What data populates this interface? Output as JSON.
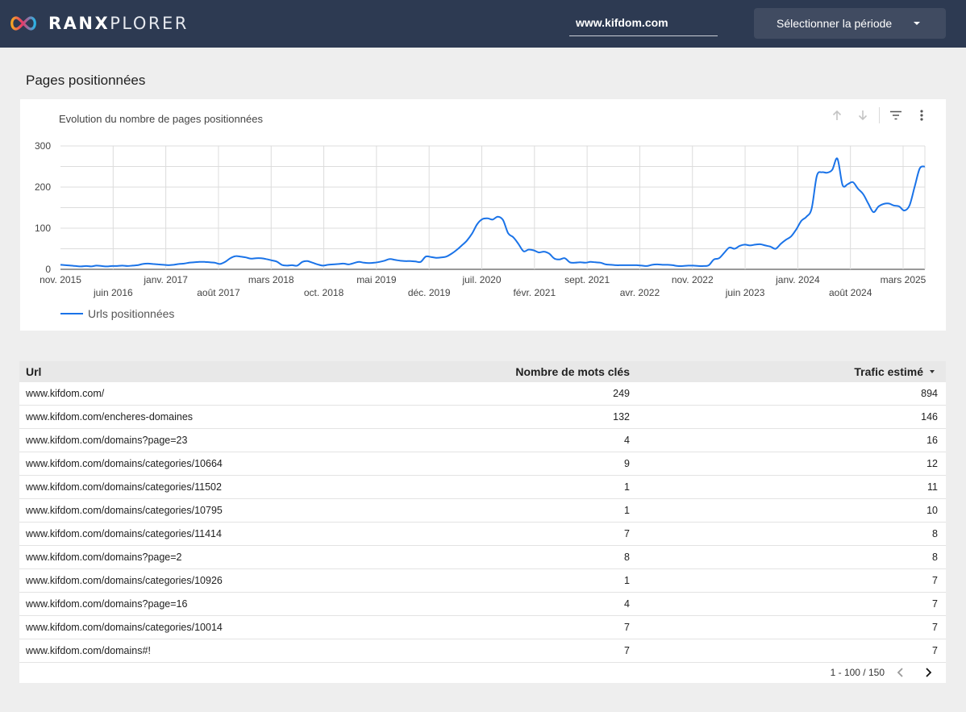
{
  "header": {
    "logo_text_bold": "RANX",
    "logo_text_light": "PLORER",
    "domain_value": "www.kifdom.com",
    "period_label": "Sélectionner la période"
  },
  "section": {
    "title": "Pages positionnées"
  },
  "chart_data": {
    "type": "line",
    "title": "Evolution du nombre de pages positionnées",
    "xlabel": "",
    "ylabel": "",
    "ylim": [
      0,
      300
    ],
    "yticks": [
      0,
      100,
      200,
      300
    ],
    "grid": true,
    "legend_position": "bottom-left",
    "x_tick_labels": [
      "nov. 2015",
      "juin 2016",
      "janv. 2017",
      "août 2017",
      "mars 2018",
      "oct. 2018",
      "mai 2019",
      "déc. 2019",
      "juil. 2020",
      "févr. 2021",
      "sept. 2021",
      "avr. 2022",
      "nov. 2022",
      "juin 2023",
      "janv. 2024",
      "août 2024",
      "mars 2025"
    ],
    "series": [
      {
        "name": "Urls positionnées",
        "color": "#1a73e8",
        "values": [
          11,
          10,
          9,
          8,
          7,
          8,
          7,
          9,
          8,
          7,
          8,
          8,
          9,
          8,
          9,
          10,
          13,
          14,
          13,
          12,
          11,
          10,
          11,
          13,
          14,
          16,
          17,
          18,
          18,
          17,
          16,
          13,
          18,
          27,
          32,
          31,
          29,
          26,
          27,
          27,
          25,
          22,
          19,
          11,
          9,
          10,
          9,
          18,
          20,
          16,
          12,
          9,
          11,
          12,
          13,
          14,
          12,
          15,
          18,
          16,
          15,
          16,
          18,
          21,
          25,
          23,
          21,
          20,
          20,
          19,
          18,
          31,
          30,
          28,
          29,
          31,
          38,
          47,
          58,
          70,
          87,
          110,
          122,
          124,
          121,
          128,
          120,
          88,
          78,
          62,
          44,
          48,
          46,
          41,
          43,
          38,
          26,
          24,
          27,
          17,
          16,
          17,
          16,
          18,
          17,
          16,
          12,
          11,
          10,
          10,
          10,
          10,
          10,
          9,
          8,
          11,
          12,
          11,
          11,
          10,
          8,
          8,
          9,
          9,
          8,
          8,
          10,
          24,
          27,
          40,
          53,
          50,
          57,
          60,
          58,
          60,
          61,
          58,
          55,
          50,
          62,
          72,
          80,
          97,
          118,
          128,
          148,
          227,
          236,
          235,
          242,
          269,
          205,
          207,
          212,
          196,
          183,
          160,
          139,
          153,
          159,
          160,
          155,
          153,
          143,
          155,
          200,
          245,
          250
        ]
      }
    ]
  },
  "table": {
    "headers": {
      "url": "Url",
      "keywords": "Nombre de mots clés",
      "traffic": "Trafic estimé"
    },
    "rows": [
      {
        "url": "www.kifdom.com/",
        "keywords": "249",
        "traffic": "894"
      },
      {
        "url": "www.kifdom.com/encheres-domaines",
        "keywords": "132",
        "traffic": "146"
      },
      {
        "url": "www.kifdom.com/domains?page=23",
        "keywords": "4",
        "traffic": "16"
      },
      {
        "url": "www.kifdom.com/domains/categories/10664",
        "keywords": "9",
        "traffic": "12"
      },
      {
        "url": "www.kifdom.com/domains/categories/11502",
        "keywords": "1",
        "traffic": "11"
      },
      {
        "url": "www.kifdom.com/domains/categories/10795",
        "keywords": "1",
        "traffic": "10"
      },
      {
        "url": "www.kifdom.com/domains/categories/11414",
        "keywords": "7",
        "traffic": "8"
      },
      {
        "url": "www.kifdom.com/domains?page=2",
        "keywords": "8",
        "traffic": "8"
      },
      {
        "url": "www.kifdom.com/domains/categories/10926",
        "keywords": "1",
        "traffic": "7"
      },
      {
        "url": "www.kifdom.com/domains?page=16",
        "keywords": "4",
        "traffic": "7"
      },
      {
        "url": "www.kifdom.com/domains/categories/10014",
        "keywords": "7",
        "traffic": "7"
      },
      {
        "url": "www.kifdom.com/domains#!",
        "keywords": "7",
        "traffic": "7"
      }
    ],
    "pagination": "1 - 100 / 150"
  },
  "icons": {
    "logo": "infinity-icon",
    "sort_up": "arrow-up-icon",
    "sort_down": "arrow-down-icon",
    "filter": "filter-icon",
    "more": "more-vert-icon",
    "prev": "chevron-left-icon",
    "next": "chevron-right-icon"
  }
}
